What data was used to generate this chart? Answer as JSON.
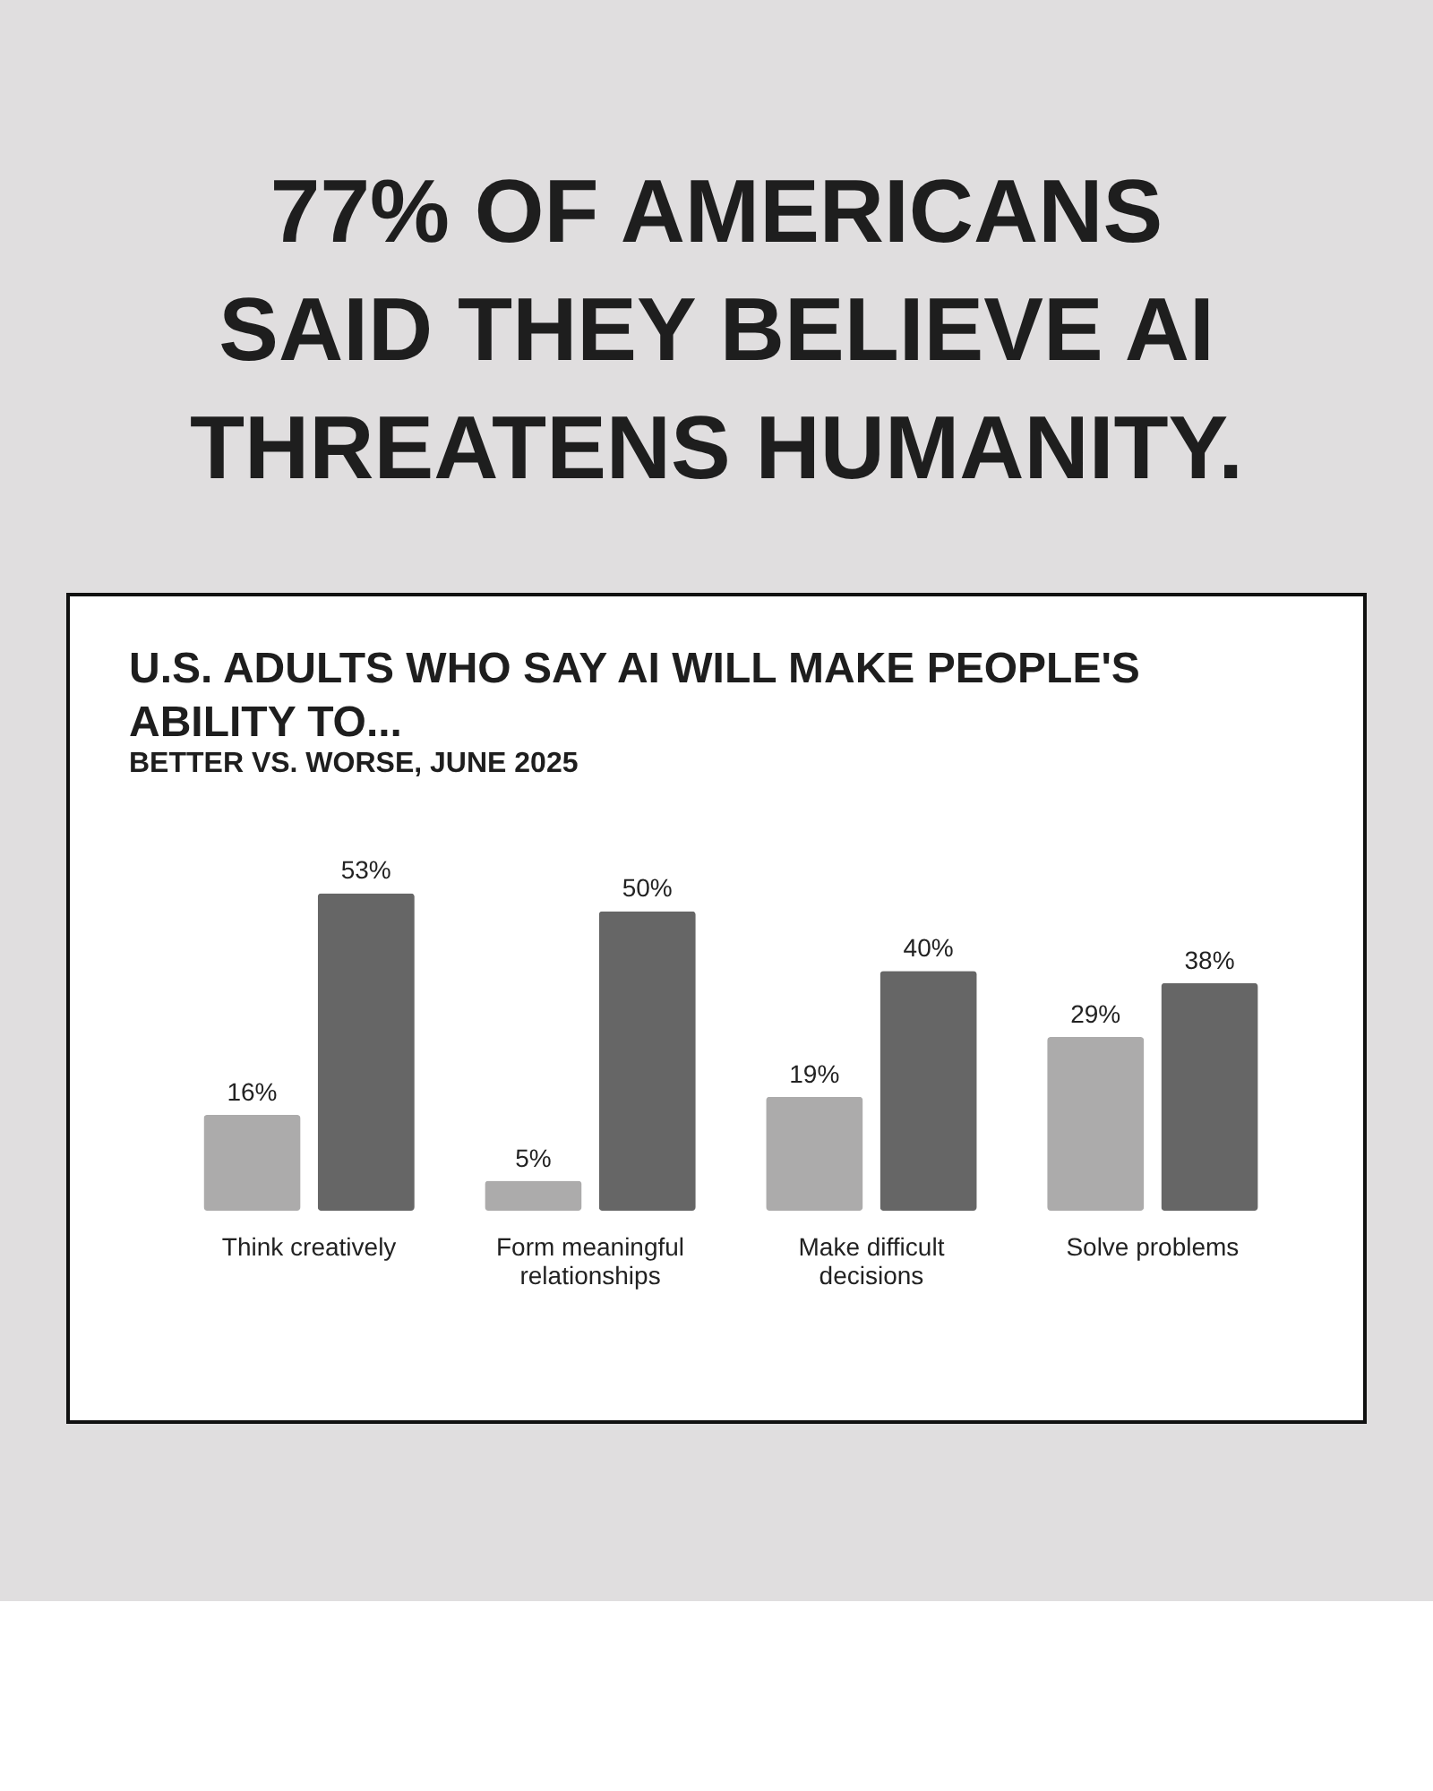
{
  "chart_data": {
    "type": "bar",
    "title": [
      "77% OF AMERICANS",
      "SAID THEY BELIEVE AI",
      "THREATENS HUMANITY."
    ],
    "subtitle": [
      "U.S. ADULTS WHO SAY AI WILL MAKE PEOPLE'S",
      "ABILITY TO..."
    ],
    "annotations": [
      "BETTER VS. WORSE, JUNE 2025"
    ],
    "categories": [
      "Think creatively",
      "Form meaningful relationships",
      "Make difficult decisions",
      "Solve problems"
    ],
    "series": [
      {
        "color": "#acabab",
        "values": [
          16,
          5,
          19,
          29
        ],
        "value_labels": [
          "16%",
          "5%",
          "19%",
          "29%"
        ]
      },
      {
        "color": "#666666",
        "values": [
          53,
          50,
          40,
          38
        ],
        "value_labels": [
          "53%",
          "50%",
          "40%",
          "38%"
        ]
      }
    ]
  }
}
